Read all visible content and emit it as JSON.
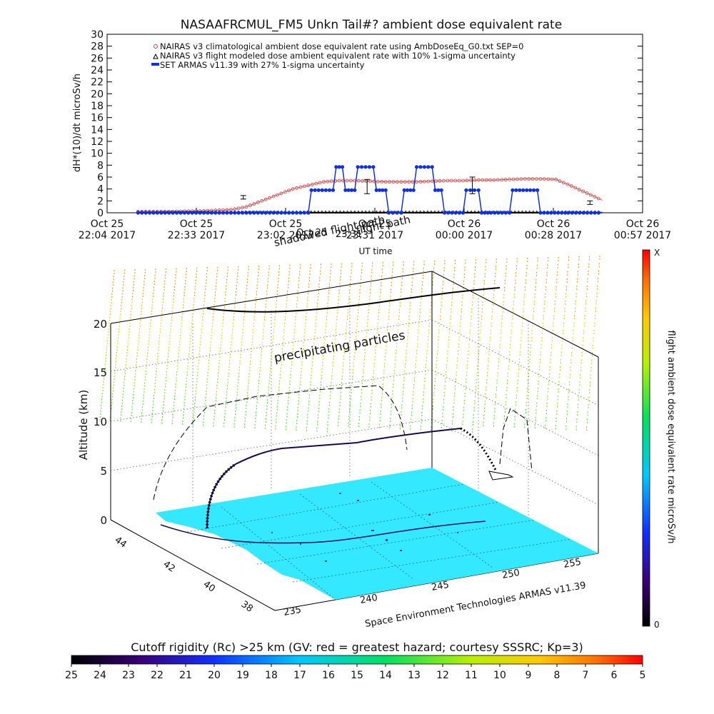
{
  "top_chart": {
    "title": "NASAAFRCMUL_FM5 Unkn Tail#? ambient dose equivalent rate",
    "ylabel": "dH*(10)/dt microSv/h",
    "xlabel": "UT time",
    "legend": [
      "NAIRAS v3 climatological ambient dose equivalent rate using AmbDoseEq_G0.txt SEP=0",
      "NAIRAS v3 flight modeled dose ambient equivalent rate with 10% 1-sigma uncertainty",
      "SET ARMAS v11.39 with 27% 1-sigma uncertainty"
    ],
    "y_ticks": [
      "0",
      "2",
      "4",
      "6",
      "8",
      "10",
      "12",
      "14",
      "16",
      "18",
      "20",
      "22",
      "24",
      "26",
      "28",
      "30"
    ],
    "x_ticks": [
      {
        "l1": "Oct 25",
        "l2": "22:04 2017"
      },
      {
        "l1": "Oct 25",
        "l2": "22:33 2017"
      },
      {
        "l1": "Oct 25",
        "l2": "23:02 2017"
      },
      {
        "l1": "Oct 25",
        "l2": "23:31 2017"
      },
      {
        "l1": "Oct 26",
        "l2": "00:00 2017"
      },
      {
        "l1": "Oct 26",
        "l2": "00:28 2017"
      },
      {
        "l1": "Oct 26",
        "l2": "00:57 2017"
      }
    ]
  },
  "chart_data": {
    "type": "line",
    "x_unit": "minutes after 22:04 UT",
    "xlim": [
      0,
      173
    ],
    "ylim": [
      0,
      30
    ],
    "series": [
      {
        "name": "NAIRAS v3 climatological ambient dose equivalent rate using AmbDoseEq_G0.txt SEP=0",
        "color": "#d04040",
        "x": [
          10,
          20,
          30,
          40,
          45,
          50,
          55,
          60,
          65,
          70,
          75,
          80,
          85,
          90,
          95,
          100,
          105,
          110,
          115,
          120,
          125,
          130,
          135,
          140,
          145,
          150,
          155,
          160
        ],
        "y": [
          0.2,
          0.2,
          0.3,
          0.5,
          1.0,
          2.0,
          3.0,
          4.0,
          4.6,
          5.2,
          5.4,
          5.4,
          5.3,
          5.2,
          5.2,
          5.2,
          5.3,
          5.4,
          5.4,
          5.5,
          5.5,
          5.6,
          5.7,
          5.7,
          5.6,
          4.5,
          3.3,
          2.1
        ]
      },
      {
        "name": "NAIRAS v3 flight modeled dose ambient equivalent rate with 10% 1-sigma uncertainty",
        "color": "#000000",
        "x": [
          10,
          40,
          60,
          80,
          100,
          120,
          140,
          160
        ],
        "y": [
          0.1,
          0.1,
          0.1,
          0.1,
          0.1,
          0.1,
          0.1,
          0.1
        ]
      },
      {
        "name": "SET ARMAS v11.39 with 27% 1-sigma uncertainty",
        "color": "#1030e0",
        "x": [
          10,
          20,
          30,
          40,
          50,
          60,
          65,
          66,
          73,
          74,
          76,
          77,
          80,
          81,
          86,
          87,
          90,
          91,
          95,
          96,
          99,
          100,
          105,
          106,
          108,
          109,
          115,
          116,
          120,
          121,
          123,
          124,
          130,
          131,
          139,
          140,
          148,
          149,
          160
        ],
        "y": [
          0,
          0,
          0,
          0,
          0,
          0,
          0,
          3.8,
          3.8,
          7.7,
          7.7,
          3.8,
          3.8,
          7.7,
          7.7,
          3.8,
          3.8,
          0,
          0,
          3.8,
          3.8,
          7.7,
          7.7,
          3.8,
          3.8,
          0,
          0,
          3.8,
          3.8,
          0,
          0,
          0,
          0,
          3.8,
          3.8,
          0,
          0,
          0,
          0
        ]
      }
    ],
    "error_bars": [
      {
        "x": 44,
        "y": 2.6,
        "err": 0.3
      },
      {
        "x": 84,
        "y": 4.4,
        "err": 1.2
      },
      {
        "x": 118,
        "y": 4.6,
        "err": 1.4
      },
      {
        "x": 156,
        "y": 1.7,
        "err": 0.3
      }
    ]
  },
  "scene": {
    "overlay_text": [
      "shadowed flight path",
      "Oct 25",
      "23:31",
      "flight path"
    ],
    "precip_label": "precipitating particles",
    "z_label": "Altitude (km)",
    "z_ticks": [
      "0",
      "5",
      "10",
      "15",
      "20"
    ],
    "lat_ticks": [
      "44",
      "42",
      "40",
      "38"
    ],
    "lon_ticks": [
      "235",
      "240",
      "245",
      "250",
      "255"
    ],
    "credit": "Space Environment Technologies ARMAS v11.39"
  },
  "right_colorbar": {
    "label": "flight ambient dose equivalent rate microSv/h",
    "top": "X",
    "bottom": "0"
  },
  "bottom_colorbar": {
    "title": "Cutoff rigidity (Rc) >25 km (GV: red = greatest hazard; courtesy SSSRC; Kp=3)",
    "ticks": [
      "25",
      "24",
      "23",
      "22",
      "21",
      "20",
      "19",
      "18",
      "17",
      "16",
      "15",
      "14",
      "13",
      "12",
      "11",
      "10",
      "9",
      "8",
      "7",
      "6",
      "5"
    ]
  },
  "colors": {
    "surface": "#33e8ff",
    "track": "#1a0a55",
    "nairas_clim": "#d04040",
    "armas": "#1030e0"
  }
}
